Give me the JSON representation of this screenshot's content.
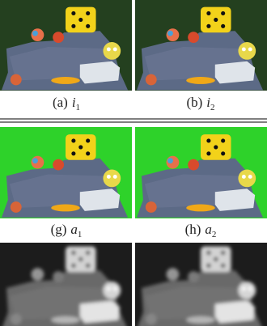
{
  "captions": [
    {
      "tag": "(a)",
      "var": "i",
      "sub": "1"
    },
    {
      "tag": "(b)",
      "var": "i",
      "sub": "2"
    },
    {
      "tag": "(g)",
      "var": "a",
      "sub": "1"
    },
    {
      "tag": "(h)",
      "var": "a",
      "sub": "2"
    }
  ]
}
